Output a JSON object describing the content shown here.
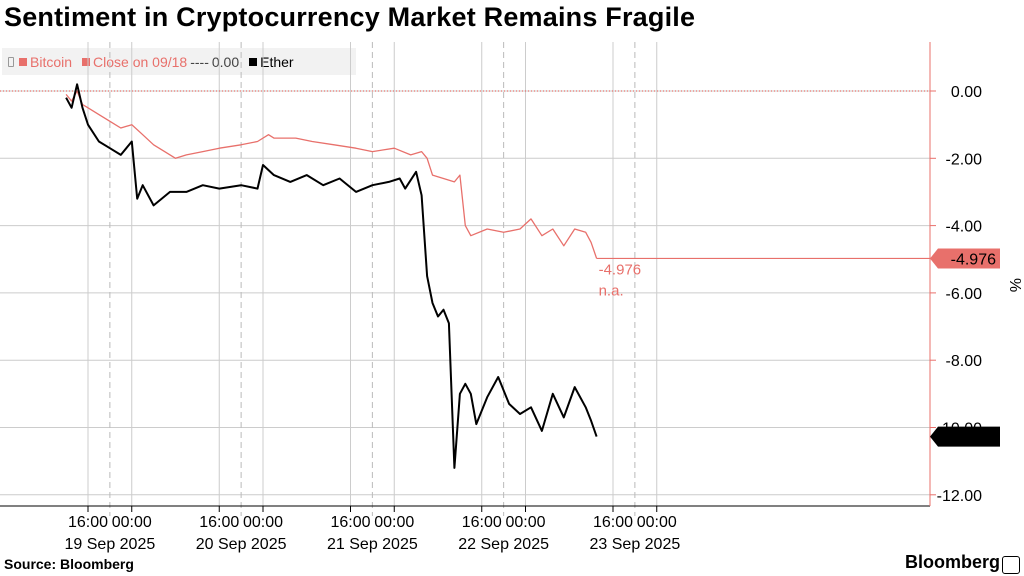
{
  "title": "Sentiment in Cryptocurrency Market Remains Fragile",
  "legend": {
    "bitcoin": "Bitcoin",
    "close_label": "Close on 09/18",
    "close_dash": "----",
    "close_value": "0.00",
    "ether": "Ether"
  },
  "source": "Source: Bloomberg",
  "brand": "Bloomberg",
  "colors": {
    "bitcoin": "#e8706b",
    "ether": "#000000",
    "grid": "#cccccc",
    "axis": "#e8706b"
  },
  "chart_data": {
    "type": "line",
    "title": "Sentiment in Cryptocurrency Market Remains Fragile",
    "ylabel": "%",
    "ylim": [
      -12.0,
      1.5
    ],
    "y_ticks": [
      "0.00",
      "-2.00",
      "-4.00",
      "-6.00",
      "-8.00",
      "-10.00",
      "-12.00"
    ],
    "y_tick_values": [
      0,
      -2,
      -4,
      -6,
      -8,
      -10,
      -12
    ],
    "x_range": [
      "2025-09-18 12:00",
      "2025-09-23 13:00"
    ],
    "x_ticks": [
      {
        "label": "16:00",
        "date": "2025-09-18 16:00"
      },
      {
        "label": "00:00",
        "date": "2025-09-19 00:00"
      },
      {
        "label": "16:00",
        "date": "2025-09-19 16:00"
      },
      {
        "label": "00:00",
        "date": "2025-09-20 00:00"
      },
      {
        "label": "16:00",
        "date": "2025-09-20 16:00"
      },
      {
        "label": "00:00",
        "date": "2025-09-21 00:00"
      },
      {
        "label": "16:00",
        "date": "2025-09-21 16:00"
      },
      {
        "label": "00:00",
        "date": "2025-09-22 00:00"
      },
      {
        "label": "16:00",
        "date": "2025-09-22 16:00"
      },
      {
        "label": "00:00",
        "date": "2025-09-23 00:00"
      }
    ],
    "x_dates": [
      {
        "label": "19 Sep 2025",
        "date": "2025-09-18 20:00"
      },
      {
        "label": "20 Sep 2025",
        "date": "2025-09-19 20:00"
      },
      {
        "label": "21 Sep 2025",
        "date": "2025-09-20 20:00"
      },
      {
        "label": "22 Sep 2025",
        "date": "2025-09-21 20:00"
      },
      {
        "label": "23 Sep 2025",
        "date": "2025-09-22 20:00"
      }
    ],
    "reference_line": {
      "name": "Close on 09/18",
      "value": 0.0
    },
    "series": [
      {
        "name": "Bitcoin",
        "last_label": "-4.976",
        "end_annotation": "-4.976",
        "end_sub": "n.a.",
        "points": [
          [
            "2025-09-18 12:00",
            -0.1
          ],
          [
            "2025-09-18 13:00",
            -0.3
          ],
          [
            "2025-09-18 14:00",
            0.0
          ],
          [
            "2025-09-18 15:00",
            -0.4
          ],
          [
            "2025-09-18 16:00",
            -0.5
          ],
          [
            "2025-09-18 18:00",
            -0.7
          ],
          [
            "2025-09-18 20:00",
            -0.9
          ],
          [
            "2025-09-18 22:00",
            -1.1
          ],
          [
            "2025-09-19 00:00",
            -1.0
          ],
          [
            "2025-09-19 02:00",
            -1.3
          ],
          [
            "2025-09-19 04:00",
            -1.6
          ],
          [
            "2025-09-19 06:00",
            -1.8
          ],
          [
            "2025-09-19 08:00",
            -2.0
          ],
          [
            "2025-09-19 10:00",
            -1.9
          ],
          [
            "2025-09-19 13:00",
            -1.8
          ],
          [
            "2025-09-19 16:00",
            -1.7
          ],
          [
            "2025-09-19 20:00",
            -1.6
          ],
          [
            "2025-09-19 23:00",
            -1.5
          ],
          [
            "2025-09-20 01:00",
            -1.3
          ],
          [
            "2025-09-20 02:00",
            -1.4
          ],
          [
            "2025-09-20 06:00",
            -1.4
          ],
          [
            "2025-09-20 09:00",
            -1.5
          ],
          [
            "2025-09-20 13:00",
            -1.6
          ],
          [
            "2025-09-20 17:00",
            -1.7
          ],
          [
            "2025-09-20 20:00",
            -1.8
          ],
          [
            "2025-09-21 00:00",
            -1.7
          ],
          [
            "2025-09-21 03:00",
            -1.9
          ],
          [
            "2025-09-21 05:00",
            -1.8
          ],
          [
            "2025-09-21 06:00",
            -2.0
          ],
          [
            "2025-09-21 07:00",
            -2.5
          ],
          [
            "2025-09-21 09:00",
            -2.6
          ],
          [
            "2025-09-21 11:00",
            -2.7
          ],
          [
            "2025-09-21 12:00",
            -2.5
          ],
          [
            "2025-09-21 13:00",
            -4.0
          ],
          [
            "2025-09-21 14:00",
            -4.3
          ],
          [
            "2025-09-21 17:00",
            -4.1
          ],
          [
            "2025-09-21 20:00",
            -4.2
          ],
          [
            "2025-09-21 23:00",
            -4.1
          ],
          [
            "2025-09-22 01:00",
            -3.8
          ],
          [
            "2025-09-22 03:00",
            -4.3
          ],
          [
            "2025-09-22 05:00",
            -4.1
          ],
          [
            "2025-09-22 07:00",
            -4.6
          ],
          [
            "2025-09-22 09:00",
            -4.1
          ],
          [
            "2025-09-22 11:00",
            -4.2
          ],
          [
            "2025-09-22 12:00",
            -4.5
          ],
          [
            "2025-09-22 13:00",
            -4.976
          ]
        ]
      },
      {
        "name": "Ether",
        "last_label": "-10.27",
        "points": [
          [
            "2025-09-18 12:00",
            -0.2
          ],
          [
            "2025-09-18 13:00",
            -0.5
          ],
          [
            "2025-09-18 14:00",
            0.2
          ],
          [
            "2025-09-18 15:00",
            -0.5
          ],
          [
            "2025-09-18 16:00",
            -1.0
          ],
          [
            "2025-09-18 18:00",
            -1.5
          ],
          [
            "2025-09-18 20:00",
            -1.7
          ],
          [
            "2025-09-18 22:00",
            -1.9
          ],
          [
            "2025-09-19 00:00",
            -1.5
          ],
          [
            "2025-09-19 01:00",
            -3.2
          ],
          [
            "2025-09-19 02:00",
            -2.8
          ],
          [
            "2025-09-19 04:00",
            -3.4
          ],
          [
            "2025-09-19 07:00",
            -3.0
          ],
          [
            "2025-09-19 10:00",
            -3.0
          ],
          [
            "2025-09-19 13:00",
            -2.8
          ],
          [
            "2025-09-19 16:00",
            -2.9
          ],
          [
            "2025-09-19 20:00",
            -2.8
          ],
          [
            "2025-09-19 23:00",
            -2.9
          ],
          [
            "2025-09-20 00:00",
            -2.2
          ],
          [
            "2025-09-20 02:00",
            -2.5
          ],
          [
            "2025-09-20 05:00",
            -2.7
          ],
          [
            "2025-09-20 08:00",
            -2.5
          ],
          [
            "2025-09-20 11:00",
            -2.8
          ],
          [
            "2025-09-20 14:00",
            -2.6
          ],
          [
            "2025-09-20 17:00",
            -3.0
          ],
          [
            "2025-09-20 20:00",
            -2.8
          ],
          [
            "2025-09-20 23:00",
            -2.7
          ],
          [
            "2025-09-21 01:00",
            -2.6
          ],
          [
            "2025-09-21 02:00",
            -2.9
          ],
          [
            "2025-09-21 04:00",
            -2.4
          ],
          [
            "2025-09-21 05:00",
            -3.1
          ],
          [
            "2025-09-21 06:00",
            -5.5
          ],
          [
            "2025-09-21 07:00",
            -6.3
          ],
          [
            "2025-09-21 08:00",
            -6.7
          ],
          [
            "2025-09-21 09:00",
            -6.5
          ],
          [
            "2025-09-21 10:00",
            -6.9
          ],
          [
            "2025-09-21 11:00",
            -11.2
          ],
          [
            "2025-09-21 12:00",
            -9.0
          ],
          [
            "2025-09-21 13:00",
            -8.7
          ],
          [
            "2025-09-21 14:00",
            -9.0
          ],
          [
            "2025-09-21 15:00",
            -9.9
          ],
          [
            "2025-09-21 17:00",
            -9.1
          ],
          [
            "2025-09-21 19:00",
            -8.5
          ],
          [
            "2025-09-21 21:00",
            -9.3
          ],
          [
            "2025-09-21 23:00",
            -9.6
          ],
          [
            "2025-09-22 01:00",
            -9.4
          ],
          [
            "2025-09-22 03:00",
            -10.1
          ],
          [
            "2025-09-22 05:00",
            -9.0
          ],
          [
            "2025-09-22 07:00",
            -9.7
          ],
          [
            "2025-09-22 09:00",
            -8.8
          ],
          [
            "2025-09-22 11:00",
            -9.4
          ],
          [
            "2025-09-22 12:00",
            -9.8
          ],
          [
            "2025-09-22 13:00",
            -10.27
          ]
        ]
      }
    ]
  }
}
